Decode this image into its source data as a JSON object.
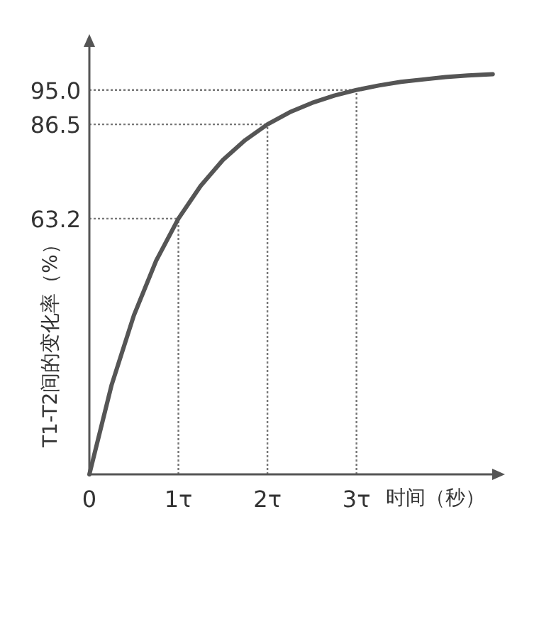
{
  "chart_data": {
    "type": "line",
    "xlabel": "时间（秒）",
    "ylabel": "T1-T2间的变化率（%）",
    "x": [
      0,
      0.25,
      0.5,
      0.75,
      1,
      1.25,
      1.5,
      1.75,
      2,
      2.25,
      2.5,
      2.75,
      3,
      3.25,
      3.5,
      3.75,
      4,
      4.25,
      4.53
    ],
    "series": [
      {
        "color": "#555555",
        "values": [
          0,
          22.1,
          39.3,
          52.8,
          63.2,
          71.3,
          77.7,
          82.6,
          86.5,
          89.5,
          91.8,
          93.6,
          95.0,
          96.1,
          97.0,
          97.6,
          98.2,
          98.6,
          98.9
        ]
      }
    ],
    "xlim": [
      0,
      4.54
    ],
    "ylim": [
      0,
      106
    ],
    "xticks": [
      0,
      {
        "value": 1,
        "label": "1τ"
      },
      {
        "value": 2,
        "label": "2τ"
      },
      {
        "value": 3,
        "label": "3τ"
      }
    ],
    "yticks": [
      {
        "value": 63.2,
        "label": "63.2"
      },
      {
        "value": 86.5,
        "label": "86.5"
      },
      {
        "value": 95,
        "label": "95.0"
      }
    ],
    "ref_lines": [
      {
        "axis": "x",
        "value": 1,
        "line_style": "dotted"
      },
      {
        "axis": "x",
        "value": 2,
        "line_style": "dotted"
      },
      {
        "axis": "x",
        "value": 3,
        "line_style": "dotted"
      },
      {
        "axis": "y",
        "value": 63.2,
        "line_style": "dotted"
      },
      {
        "axis": "y",
        "value": 86.5,
        "line_style": "dotted"
      },
      {
        "axis": "y",
        "value": 95,
        "line_style": "dotted"
      }
    ],
    "line_style": "solid",
    "marker": "none",
    "grid": false
  }
}
